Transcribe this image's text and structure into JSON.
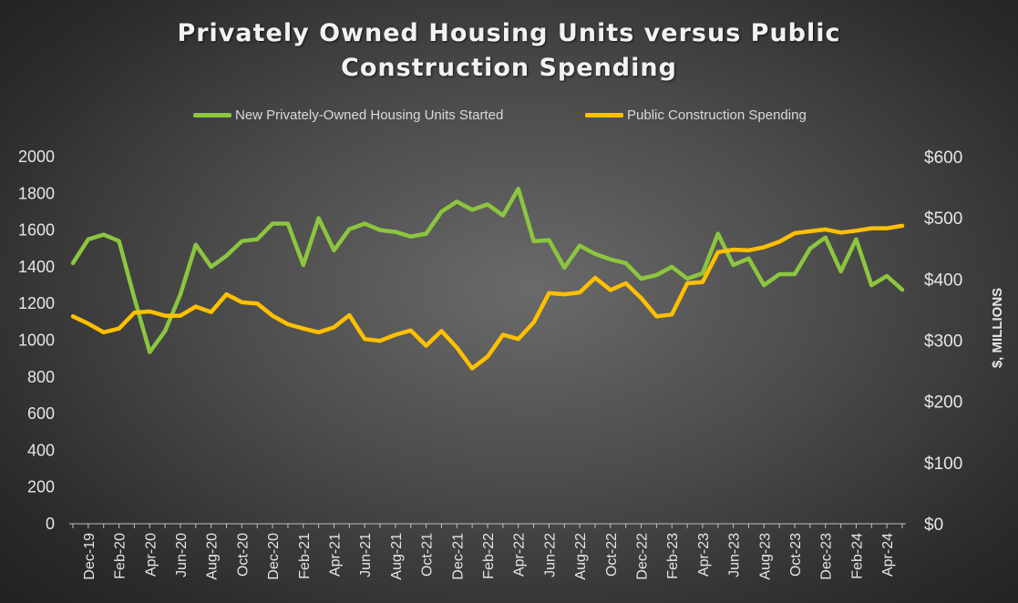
{
  "chart_data": {
    "type": "line",
    "title_lines": [
      "Privately Owned Housing Units versus Public",
      "Construction Spending"
    ],
    "ylabel_right": "$, MILLIONS",
    "y_left": {
      "min": 0,
      "max": 2000,
      "step": 200,
      "ticks": [
        "0",
        "200",
        "400",
        "600",
        "800",
        "1000",
        "1200",
        "1400",
        "1600",
        "1800",
        "2000"
      ]
    },
    "y_right": {
      "min": 0,
      "max": 600,
      "step": 100,
      "ticks": [
        "$0",
        "$100",
        "$200",
        "$300",
        "$400",
        "$500",
        "$600"
      ]
    },
    "x_tick_labels": [
      "Dec-19",
      "Feb-20",
      "Apr-20",
      "Jun-20",
      "Aug-20",
      "Oct-20",
      "Dec-20",
      "Feb-21",
      "Apr-21",
      "Jun-21",
      "Aug-21",
      "Oct-21",
      "Dec-21",
      "Feb-22",
      "Apr-22",
      "Jun-22",
      "Aug-22",
      "Oct-22",
      "Dec-22",
      "Feb-23",
      "Apr-23",
      "Jun-23",
      "Aug-23",
      "Oct-23",
      "Dec-23",
      "Feb-24",
      "Apr-24"
    ],
    "x": [
      "Nov-19",
      "Dec-19",
      "Jan-20",
      "Feb-20",
      "Mar-20",
      "Apr-20",
      "May-20",
      "Jun-20",
      "Jul-20",
      "Aug-20",
      "Sep-20",
      "Oct-20",
      "Nov-20",
      "Dec-20",
      "Jan-21",
      "Feb-21",
      "Mar-21",
      "Apr-21",
      "May-21",
      "Jun-21",
      "Jul-21",
      "Aug-21",
      "Sep-21",
      "Oct-21",
      "Nov-21",
      "Dec-21",
      "Jan-22",
      "Feb-22",
      "Mar-22",
      "Apr-22",
      "May-22",
      "Jun-22",
      "Jul-22",
      "Aug-22",
      "Sep-22",
      "Oct-22",
      "Nov-22",
      "Dec-22",
      "Jan-23",
      "Feb-23",
      "Mar-23",
      "Apr-23",
      "May-23",
      "Jun-23",
      "Jul-23",
      "Aug-23",
      "Sep-23",
      "Oct-23",
      "Nov-23",
      "Dec-23",
      "Jan-24",
      "Feb-24",
      "Mar-24",
      "Apr-24",
      "May-24"
    ],
    "series": [
      {
        "name": "New Privately-Owned Housing Units Started",
        "axis": "left",
        "color": "#8cc63f",
        "values": [
          1420,
          1550,
          1575,
          1540,
          1230,
          935,
          1050,
          1250,
          1520,
          1400,
          1460,
          1540,
          1550,
          1635,
          1635,
          1410,
          1665,
          1490,
          1605,
          1635,
          1600,
          1590,
          1565,
          1580,
          1700,
          1755,
          1710,
          1740,
          1680,
          1825,
          1540,
          1545,
          1395,
          1515,
          1470,
          1440,
          1420,
          1335,
          1355,
          1400,
          1335,
          1365,
          1580,
          1410,
          1445,
          1300,
          1360,
          1360,
          1500,
          1560,
          1375,
          1550,
          1300,
          1350,
          1275
        ]
      },
      {
        "name": "Public Construction Spending",
        "axis": "right",
        "color": "#ffc000",
        "values": [
          339,
          327,
          313,
          319,
          345,
          347,
          340,
          340,
          355,
          346,
          375,
          362,
          360,
          340,
          326,
          319,
          313,
          321,
          341,
          302,
          299,
          309,
          316,
          291,
          315,
          288,
          254,
          273,
          309,
          302,
          329,
          377,
          375,
          378,
          402,
          382,
          393,
          369,
          339,
          342,
          393,
          395,
          444,
          448,
          447,
          452,
          461,
          475,
          478,
          481,
          476,
          479,
          483,
          483,
          487
        ]
      }
    ],
    "legend_position": "top",
    "grid": false
  }
}
